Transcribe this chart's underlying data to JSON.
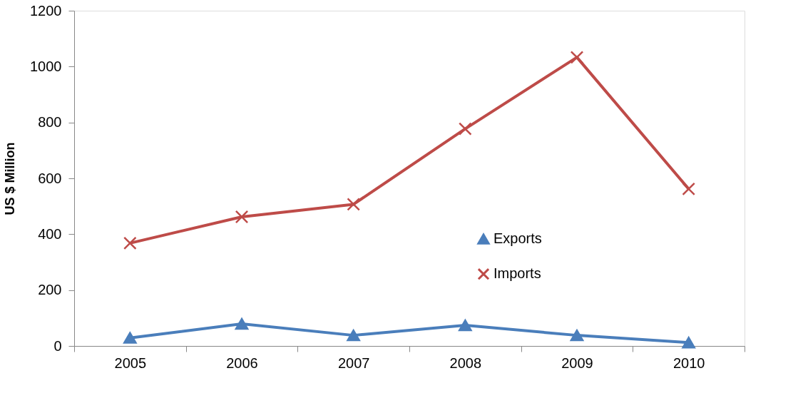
{
  "chart_data": {
    "type": "line",
    "ylabel": "US $ Million",
    "categories": [
      "2005",
      "2006",
      "2007",
      "2008",
      "2009",
      "2010"
    ],
    "series": [
      {
        "name": "Exports",
        "color": "#4a7ebb",
        "marker": "triangle",
        "values": [
          29,
          79,
          38,
          74,
          38,
          12
        ]
      },
      {
        "name": "Imports",
        "color": "#be4b48",
        "marker": "cross",
        "values": [
          368,
          462,
          507,
          777,
          1033,
          562
        ]
      }
    ],
    "ylim": [
      0,
      1200
    ],
    "yticks": [
      0,
      200,
      400,
      600,
      800,
      1000,
      1200
    ],
    "grid": false,
    "legend": "right",
    "line_style": "solid"
  }
}
